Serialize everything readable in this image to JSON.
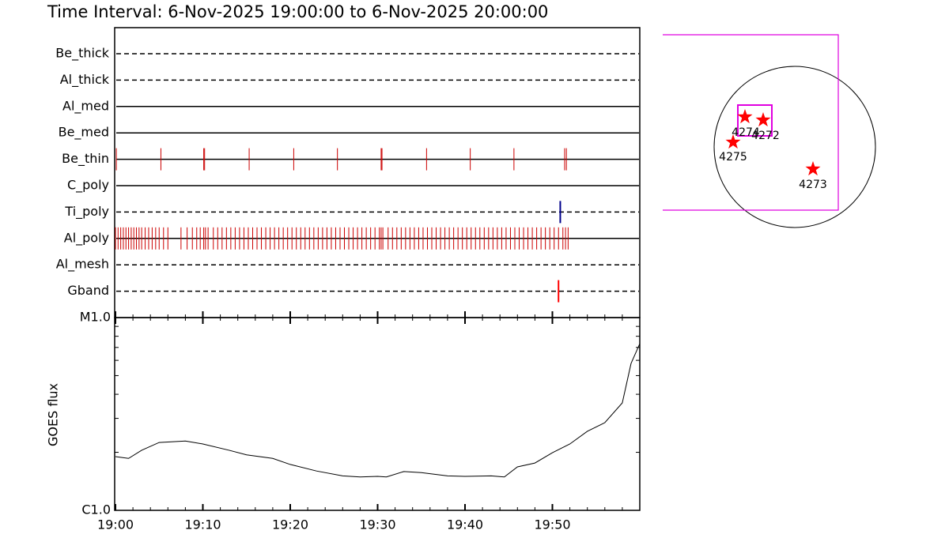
{
  "chart_data": [
    {
      "type": "timeline",
      "title": "Time Interval:  6-Nov-2025 19:00:00 to  6-Nov-2025 20:00:00",
      "xlim": [
        0,
        60
      ],
      "series": [
        {
          "name": "Be_thick",
          "line_style": "dashed",
          "values": []
        },
        {
          "name": "Al_thick",
          "line_style": "dashed",
          "values": []
        },
        {
          "name": "Al_med",
          "line_style": "solid",
          "values": []
        },
        {
          "name": "Be_med",
          "line_style": "solid",
          "values": []
        },
        {
          "name": "Be_thin",
          "line_style": "solid",
          "color": "#cc0000",
          "values": [
            0.1,
            5.2,
            10.1,
            10.2,
            15.3,
            20.4,
            25.4,
            30.4,
            30.5,
            35.6,
            40.6,
            45.6,
            51.4,
            51.6
          ]
        },
        {
          "name": "C_poly",
          "line_style": "solid",
          "values": []
        },
        {
          "name": "Ti_poly",
          "line_style": "dashed",
          "color": "#00008b",
          "values": [
            50.9
          ]
        },
        {
          "name": "Al_poly",
          "line_style": "solid",
          "color": "#cc0000",
          "values": [
            0,
            0.3,
            0.6,
            0.9,
            1.2,
            1.5,
            1.8,
            2.1,
            2.4,
            2.7,
            3.0,
            3.4,
            3.8,
            4.2,
            4.6,
            5.0,
            5.5,
            6.0,
            7.5,
            8.2,
            8.8,
            9.3,
            9.7,
            10.1,
            10.3,
            10.6,
            11.2,
            11.7,
            12.2,
            12.7,
            13.2,
            13.7,
            14.2,
            14.7,
            15.2,
            15.7,
            16.2,
            16.7,
            17.2,
            17.7,
            18.2,
            18.7,
            19.2,
            19.7,
            20.2,
            20.7,
            21.2,
            21.7,
            22.2,
            22.7,
            23.2,
            23.7,
            24.2,
            24.7,
            25.2,
            25.7,
            26.2,
            26.7,
            27.2,
            27.7,
            28.2,
            28.7,
            29.2,
            29.7,
            30.2,
            30.4,
            30.6,
            31.2,
            31.7,
            32.2,
            32.7,
            33.2,
            33.7,
            34.2,
            34.7,
            35.2,
            35.7,
            36.2,
            36.7,
            37.2,
            37.7,
            38.2,
            38.7,
            39.2,
            39.7,
            40.2,
            40.7,
            41.2,
            41.7,
            42.2,
            42.7,
            43.2,
            43.7,
            44.2,
            44.7,
            45.2,
            45.7,
            46.2,
            46.7,
            47.2,
            47.7,
            48.2,
            48.7,
            49.2,
            49.7,
            50.2,
            50.7,
            51.2,
            51.5,
            51.8
          ]
        },
        {
          "name": "Al_mesh",
          "line_style": "dashed",
          "values": []
        },
        {
          "name": "Gband",
          "line_style": "dashed",
          "color": "#ff0000",
          "values": [
            50.7
          ]
        }
      ]
    },
    {
      "type": "line",
      "y_label": "GOES flux",
      "log_scale": true,
      "color": "#000000",
      "xlim": [
        0,
        60
      ],
      "xticks": [
        {
          "value": 0,
          "label": "19:00"
        },
        {
          "value": 10,
          "label": "19:10"
        },
        {
          "value": 20,
          "label": "19:20"
        },
        {
          "value": 30,
          "label": "19:30"
        },
        {
          "value": 40,
          "label": "19:40"
        },
        {
          "value": 50,
          "label": "19:50"
        }
      ],
      "xminorticks": [
        2,
        4,
        6,
        8,
        12,
        14,
        16,
        18,
        22,
        24,
        26,
        28,
        32,
        34,
        36,
        38,
        42,
        44,
        46,
        48,
        52,
        54,
        56,
        58
      ],
      "ylim": [
        1e-06,
        1e-05
      ],
      "yticks": [
        {
          "value": 1e-06,
          "label": "C1.0"
        },
        {
          "value": 1e-05,
          "label": "M1.0"
        }
      ],
      "yminorticks": [
        2e-06,
        3e-06,
        4e-06,
        5e-06,
        6e-06,
        7e-06,
        8e-06,
        9e-06
      ],
      "x": [
        0,
        1.5,
        3,
        5,
        8,
        10,
        13,
        15,
        18,
        20,
        23,
        26,
        28,
        30,
        31,
        33,
        35,
        38,
        40,
        43,
        44.5,
        46,
        48,
        50,
        52,
        54,
        56,
        58,
        59,
        60
      ],
      "values": [
        1.9e-06,
        1.86e-06,
        2.05e-06,
        2.25e-06,
        2.29e-06,
        2.21e-06,
        2.05e-06,
        1.94e-06,
        1.86e-06,
        1.73e-06,
        1.6e-06,
        1.51e-06,
        1.49e-06,
        1.5e-06,
        1.49e-06,
        1.59e-06,
        1.57e-06,
        1.51e-06,
        1.5e-06,
        1.51e-06,
        1.49e-06,
        1.68e-06,
        1.76e-06,
        1.99e-06,
        2.21e-06,
        2.57e-06,
        2.85e-06,
        3.61e-06,
        5.78e-06,
        7.32e-06
      ]
    }
  ],
  "map": {
    "regions": [
      "4274",
      "4272",
      "4275",
      "4273"
    ]
  }
}
